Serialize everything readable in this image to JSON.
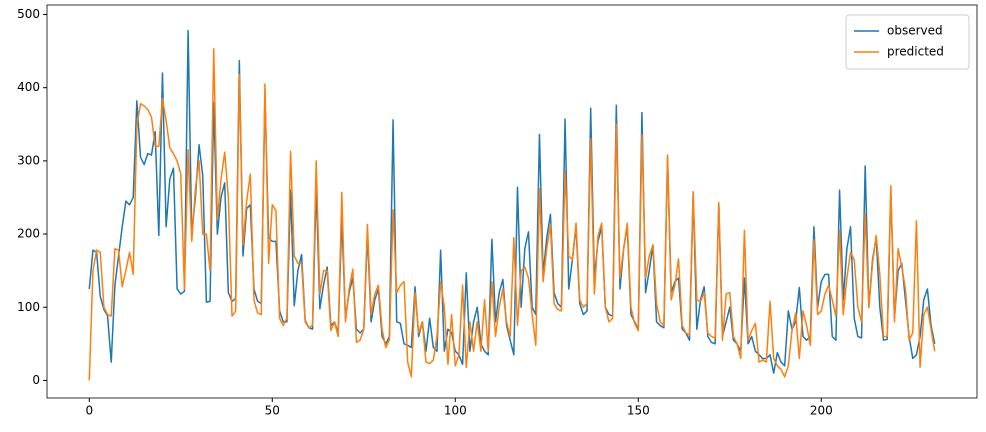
{
  "chart_data": {
    "type": "line",
    "x": [
      0,
      1,
      2,
      3,
      4,
      5,
      6,
      7,
      8,
      9,
      10,
      11,
      12,
      13,
      14,
      15,
      16,
      17,
      18,
      19,
      20,
      21,
      22,
      23,
      24,
      25,
      26,
      27,
      28,
      29,
      30,
      31,
      32,
      33,
      34,
      35,
      36,
      37,
      38,
      39,
      40,
      41,
      42,
      43,
      44,
      45,
      46,
      47,
      48,
      49,
      50,
      51,
      52,
      53,
      54,
      55,
      56,
      57,
      58,
      59,
      60,
      61,
      62,
      63,
      64,
      65,
      66,
      67,
      68,
      69,
      70,
      71,
      72,
      73,
      74,
      75,
      76,
      77,
      78,
      79,
      80,
      81,
      82,
      83,
      84,
      85,
      86,
      87,
      88,
      89,
      90,
      91,
      92,
      93,
      94,
      95,
      96,
      97,
      98,
      99,
      100,
      101,
      102,
      103,
      104,
      105,
      106,
      107,
      108,
      109,
      110,
      111,
      112,
      113,
      114,
      115,
      116,
      117,
      118,
      119,
      120,
      121,
      122,
      123,
      124,
      125,
      126,
      127,
      128,
      129,
      130,
      131,
      132,
      133,
      134,
      135,
      136,
      137,
      138,
      139,
      140,
      141,
      142,
      143,
      144,
      145,
      146,
      147,
      148,
      149,
      150,
      151,
      152,
      153,
      154,
      155,
      156,
      157,
      158,
      159,
      160,
      161,
      162,
      163,
      164,
      165,
      166,
      167,
      168,
      169,
      170,
      171,
      172,
      173,
      174,
      175,
      176,
      177,
      178,
      179,
      180,
      181,
      182,
      183,
      184,
      185,
      186,
      187,
      188,
      189,
      190,
      191,
      192,
      193,
      194,
      195,
      196,
      197,
      198,
      199,
      200,
      201,
      202,
      203,
      204,
      205,
      206,
      207,
      208,
      209,
      210,
      211,
      212,
      213,
      214,
      215,
      216,
      217,
      218,
      219,
      220,
      221,
      222,
      223,
      224,
      225,
      226,
      227,
      228,
      229,
      230,
      231
    ],
    "series": [
      {
        "name": "observed",
        "color": "#1f77b4",
        "values": [
          125,
          178,
          175,
          115,
          97,
          88,
          25,
          130,
          170,
          210,
          245,
          240,
          250,
          382,
          305,
          295,
          310,
          308,
          340,
          198,
          420,
          210,
          275,
          290,
          125,
          118,
          122,
          478,
          200,
          250,
          322,
          280,
          107,
          108,
          380,
          200,
          250,
          270,
          120,
          108,
          112,
          437,
          170,
          235,
          240,
          125,
          108,
          105,
          390,
          195,
          190,
          190,
          95,
          80,
          80,
          260,
          102,
          150,
          172,
          82,
          72,
          70,
          265,
          98,
          130,
          155,
          75,
          80,
          65,
          220,
          85,
          120,
          140,
          70,
          65,
          70,
          200,
          80,
          110,
          125,
          60,
          50,
          60,
          356,
          80,
          78,
          50,
          48,
          45,
          128,
          60,
          80,
          40,
          85,
          45,
          40,
          178,
          40,
          70,
          65,
          40,
          35,
          22,
          147,
          40,
          80,
          100,
          50,
          40,
          35,
          193,
          80,
          120,
          138,
          75,
          55,
          35,
          264,
          100,
          180,
          203,
          100,
          90,
          336,
          145,
          195,
          227,
          120,
          105,
          100,
          357,
          125,
          165,
          210,
          105,
          90,
          95,
          372,
          140,
          190,
          210,
          100,
          90,
          88,
          376,
          125,
          180,
          210,
          90,
          80,
          70,
          366,
          120,
          150,
          185,
          80,
          75,
          72,
          305,
          120,
          135,
          140,
          70,
          65,
          55,
          255,
          70,
          110,
          128,
          60,
          52,
          50,
          240,
          60,
          80,
          100,
          55,
          50,
          40,
          140,
          50,
          60,
          40,
          35,
          30,
          30,
          35,
          10,
          38,
          25,
          20,
          95,
          70,
          80,
          127,
          60,
          55,
          60,
          210,
          100,
          135,
          145,
          145,
          60,
          55,
          260,
          110,
          180,
          210,
          85,
          60,
          58,
          293,
          100,
          165,
          195,
          100,
          55,
          56,
          260,
          85,
          150,
          160,
          110,
          60,
          30,
          35,
          60,
          110,
          125,
          75,
          50
        ]
      },
      {
        "name": "predicted",
        "color": "#ff7f0e",
        "values": [
          0,
          150,
          178,
          175,
          100,
          90,
          88,
          180,
          178,
          128,
          150,
          175,
          145,
          348,
          378,
          375,
          370,
          360,
          320,
          320,
          385,
          355,
          318,
          310,
          300,
          282,
          125,
          315,
          190,
          262,
          300,
          200,
          200,
          150,
          453,
          220,
          275,
          312,
          250,
          88,
          95,
          418,
          185,
          245,
          282,
          110,
          92,
          90,
          405,
          160,
          240,
          232,
          85,
          75,
          85,
          313,
          170,
          160,
          160,
          80,
          72,
          75,
          300,
          118,
          150,
          150,
          68,
          80,
          60,
          257,
          80,
          125,
          152,
          52,
          55,
          70,
          213,
          90,
          118,
          130,
          70,
          45,
          55,
          233,
          120,
          130,
          135,
          25,
          5,
          120,
          65,
          80,
          25,
          23,
          28,
          60,
          135,
          100,
          22,
          90,
          20,
          35,
          130,
          18,
          80,
          40,
          80,
          40,
          110,
          40,
          135,
          60,
          100,
          125,
          80,
          60,
          195,
          75,
          150,
          155,
          140,
          90,
          48,
          262,
          135,
          180,
          213,
          105,
          97,
          95,
          285,
          170,
          165,
          215,
          110,
          100,
          105,
          330,
          118,
          198,
          215,
          100,
          80,
          85,
          350,
          140,
          180,
          215,
          100,
          78,
          68,
          335,
          140,
          170,
          185,
          105,
          80,
          75,
          308,
          110,
          130,
          166,
          75,
          65,
          62,
          258,
          110,
          108,
          120,
          65,
          60,
          58,
          243,
          55,
          118,
          120,
          60,
          50,
          30,
          205,
          55,
          68,
          78,
          25,
          28,
          25,
          108,
          30,
          20,
          15,
          5,
          20,
          68,
          92,
          30,
          95,
          75,
          48,
          192,
          90,
          95,
          118,
          130,
          110,
          88,
          205,
          90,
          140,
          175,
          165,
          100,
          80,
          228,
          100,
          160,
          198,
          145,
          60,
          60,
          266,
          80,
          180,
          155,
          125,
          55,
          65,
          218,
          18,
          90,
          100,
          70,
          40
        ]
      }
    ],
    "xlim": [
      -11.55,
      242.55
    ],
    "xticks": [
      0,
      50,
      100,
      150,
      200
    ],
    "ylim": [
      -24,
      513
    ],
    "yticks": [
      0,
      100,
      200,
      300,
      400,
      500
    ],
    "legend": "upper right"
  }
}
